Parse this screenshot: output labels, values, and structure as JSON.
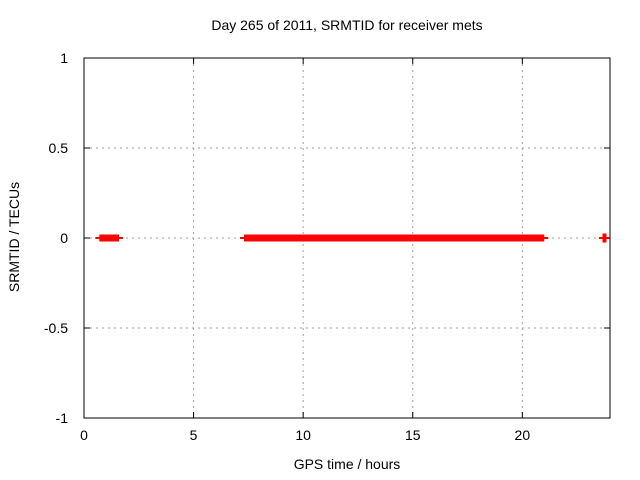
{
  "chart_data": {
    "type": "scatter",
    "title": "Day 265 of 2011, SRMTID for receiver mets",
    "xlabel": "GPS time / hours",
    "ylabel": "SRMTID / TECUs",
    "xlim": [
      0,
      24
    ],
    "ylim": [
      -1,
      1
    ],
    "x_ticks": [
      0,
      5,
      10,
      15,
      20
    ],
    "x_tick_labels": [
      "0",
      "5",
      "10",
      "15",
      "20"
    ],
    "y_ticks": [
      -1,
      -0.5,
      0,
      0.5,
      1
    ],
    "y_tick_labels": [
      "-1",
      "-0.5",
      "0",
      "0.5",
      "1"
    ],
    "grid": true,
    "grid_x_lines": [
      5,
      10,
      15,
      20
    ],
    "grid_y_lines": [
      -0.5,
      0,
      0.5
    ],
    "legend": "none",
    "series": [
      {
        "name": "SRMTID",
        "color": "#ff0000",
        "marker": "plus",
        "value_y": 0,
        "dense_intervals_x": [
          [
            0.7,
            1.6
          ],
          [
            7.3,
            21.0
          ]
        ],
        "isolated_points_x": [
          23.75
        ]
      }
    ],
    "colors": {
      "background": "#ffffff",
      "border": "#000000",
      "grid": "#9e9e9e",
      "accent": "#ff0000",
      "text": "#000000"
    }
  }
}
